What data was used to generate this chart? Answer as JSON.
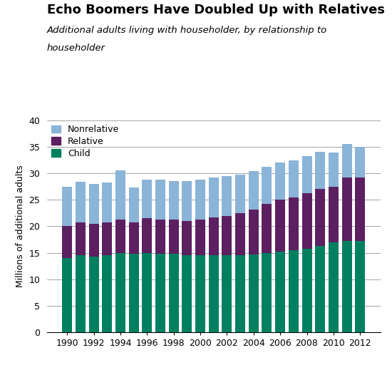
{
  "years": [
    1990,
    1991,
    1992,
    1993,
    1994,
    1995,
    1996,
    1997,
    1998,
    1999,
    2000,
    2001,
    2002,
    2003,
    2004,
    2005,
    2006,
    2007,
    2008,
    2009,
    2010,
    2011,
    2012
  ],
  "child": [
    14.0,
    14.5,
    14.2,
    14.5,
    15.0,
    14.8,
    15.0,
    14.8,
    14.8,
    14.5,
    14.5,
    14.5,
    14.5,
    14.5,
    14.7,
    15.0,
    15.2,
    15.5,
    15.8,
    16.3,
    17.0,
    17.2,
    17.2
  ],
  "relative": [
    6.0,
    6.3,
    6.2,
    6.2,
    6.3,
    6.0,
    6.5,
    6.5,
    6.5,
    6.5,
    6.8,
    7.2,
    7.5,
    8.0,
    8.5,
    9.3,
    9.8,
    10.0,
    10.5,
    10.8,
    10.5,
    12.0,
    12.0
  ],
  "nonrelative": [
    7.5,
    7.6,
    7.6,
    7.6,
    9.3,
    6.5,
    7.3,
    7.5,
    7.3,
    7.5,
    7.5,
    7.5,
    7.5,
    7.3,
    7.2,
    7.0,
    7.0,
    7.0,
    7.0,
    7.0,
    6.5,
    6.3,
    5.8
  ],
  "child_color": "#008060",
  "relative_color": "#5c2060",
  "nonrelative_color": "#8ab4d8",
  "title": "Echo Boomers Have Doubled Up with Relatives",
  "subtitle_line1": "Additional adults living with householder, by relationship to",
  "subtitle_line2": "householder",
  "ylabel": "Millions of additional adults",
  "ylim": [
    0,
    40
  ],
  "yticks": [
    0,
    5,
    10,
    15,
    20,
    25,
    30,
    35,
    40
  ],
  "xtick_labels": [
    "1990",
    "1992",
    "1994",
    "1996",
    "1998",
    "2000",
    "2002",
    "2004",
    "2006",
    "2008",
    "2010",
    "2012"
  ],
  "xtick_positions": [
    1990,
    1992,
    1994,
    1996,
    1998,
    2000,
    2002,
    2004,
    2006,
    2008,
    2010,
    2012
  ],
  "title_fontsize": 13,
  "subtitle_fontsize": 9.5,
  "ylabel_fontsize": 9,
  "tick_fontsize": 9,
  "legend_fontsize": 9,
  "bar_width": 0.75
}
